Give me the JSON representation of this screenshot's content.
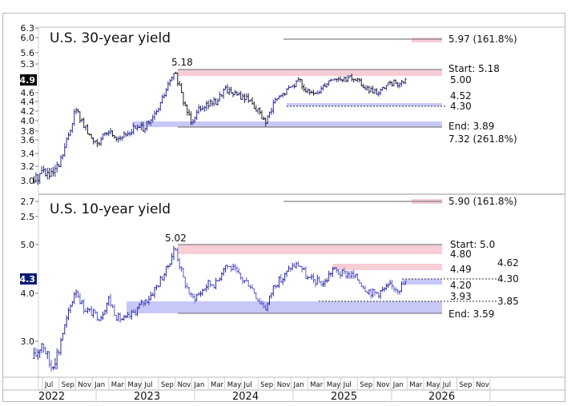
{
  "chart_data": [
    {
      "type": "bar",
      "subtype": "ohlc-price-bars",
      "title": "U.S. 30-year yield",
      "xlabel": "",
      "ylabel": "",
      "y_ticks": [
        "3.0",
        "3.2",
        "3.4",
        "3.6",
        "3.8",
        "4.0",
        "4.2",
        "4.4",
        "4.6",
        "5.3",
        "5.6",
        "6.0",
        "6.3"
      ],
      "y_tick_values": [
        3.0,
        3.2,
        3.4,
        3.6,
        3.8,
        4.0,
        4.2,
        4.4,
        4.6,
        5.3,
        5.6,
        6.0,
        6.3
      ],
      "current_value_label": "4.9",
      "ylim": [
        2.85,
        6.35
      ],
      "peak_label": "5.18",
      "annotations": [
        {
          "text": "5.97 (161.8%)",
          "value": 5.97
        },
        {
          "text": "Start: 5.18",
          "value": 5.18
        },
        {
          "text": "5.00",
          "value": 5.0
        },
        {
          "text": "4.52",
          "value": 4.52
        },
        {
          "text": "4.30",
          "value": 4.3
        },
        {
          "text": "End: 3.89",
          "value": 3.89
        },
        {
          "text": "7.32 (261.8%)",
          "value": 7.32
        }
      ],
      "zones": [
        {
          "color": "pink",
          "from": 5.0,
          "to": 5.18
        },
        {
          "color": "pink",
          "from": 5.94,
          "to": 6.0
        },
        {
          "color": "blue",
          "from": 4.28,
          "to": 4.33
        },
        {
          "color": "blue",
          "from": 3.89,
          "to": 4.0
        }
      ],
      "x": [
        "2022-05",
        "2022-06",
        "2022-07",
        "2022-08",
        "2022-09",
        "2022-10",
        "2022-11",
        "2022-12",
        "2023-01",
        "2023-02",
        "2023-03",
        "2023-04",
        "2023-05",
        "2023-06",
        "2023-07",
        "2023-08",
        "2023-09",
        "2023-10",
        "2023-11",
        "2023-12",
        "2024-01",
        "2024-02",
        "2024-03",
        "2024-04",
        "2024-05",
        "2024-06",
        "2024-07",
        "2024-08",
        "2024-09",
        "2024-10",
        "2024-11",
        "2024-12",
        "2025-01",
        "2025-02",
        "2025-03",
        "2025-04",
        "2025-05",
        "2025-06",
        "2025-07",
        "2025-08",
        "2025-09",
        "2025-10",
        "2025-11",
        "2025-12",
        "2026-01",
        "2026-02"
      ],
      "values": [
        3.0,
        3.15,
        3.05,
        3.2,
        3.6,
        4.25,
        3.9,
        3.6,
        3.6,
        3.8,
        3.65,
        3.7,
        3.85,
        3.85,
        3.95,
        4.25,
        4.7,
        5.1,
        4.4,
        4.0,
        4.3,
        4.35,
        4.4,
        4.7,
        4.6,
        4.5,
        4.45,
        4.2,
        3.95,
        4.4,
        4.55,
        4.75,
        4.9,
        4.6,
        4.55,
        4.8,
        4.95,
        4.9,
        4.95,
        4.9,
        4.7,
        4.6,
        4.65,
        4.85,
        4.8,
        4.9
      ]
    },
    {
      "type": "bar",
      "subtype": "ohlc-price-bars",
      "title": "U.S. 10-year yield",
      "xlabel": "",
      "ylabel": "",
      "y_ticks": [
        "2.5",
        "2.7",
        "3.0",
        "4.0",
        "5.0"
      ],
      "y_tick_values": [
        2.5,
        2.7,
        3.0,
        4.0,
        5.0
      ],
      "current_value_label": "4.3",
      "ylim": [
        2.45,
        5.3
      ],
      "peak_label": "5.02",
      "annotations": [
        {
          "text": "5.90 (161.8%)",
          "value": 5.9
        },
        {
          "text": "Start: 5.0",
          "value": 5.0
        },
        {
          "text": "4.80",
          "value": 4.8
        },
        {
          "text": "4.62",
          "value": 4.62
        },
        {
          "text": "4.49",
          "value": 4.49
        },
        {
          "text": "4.30",
          "value": 4.3
        },
        {
          "text": "4.20",
          "value": 4.2
        },
        {
          "text": "3.93",
          "value": 3.93
        },
        {
          "text": "3.85",
          "value": 3.85
        },
        {
          "text": "End: 3.59",
          "value": 3.59
        }
      ],
      "zones": [
        {
          "color": "pink",
          "from": 4.8,
          "to": 5.0
        },
        {
          "color": "pink",
          "from": 4.49,
          "to": 4.62
        },
        {
          "color": "blue",
          "from": 4.2,
          "to": 4.3
        },
        {
          "color": "blue",
          "from": 3.59,
          "to": 3.85
        }
      ],
      "x": [
        "2022-05",
        "2022-06",
        "2022-07",
        "2022-08",
        "2022-09",
        "2022-10",
        "2022-11",
        "2022-12",
        "2023-01",
        "2023-02",
        "2023-03",
        "2023-04",
        "2023-05",
        "2023-06",
        "2023-07",
        "2023-08",
        "2023-09",
        "2023-10",
        "2023-11",
        "2023-12",
        "2024-01",
        "2024-02",
        "2024-03",
        "2024-04",
        "2024-05",
        "2024-06",
        "2024-07",
        "2024-08",
        "2024-09",
        "2024-10",
        "2024-11",
        "2024-12",
        "2025-01",
        "2025-02",
        "2025-03",
        "2025-04",
        "2025-05",
        "2025-06",
        "2025-07",
        "2025-08",
        "2025-09",
        "2025-10",
        "2025-11",
        "2025-12",
        "2026-01",
        "2026-02"
      ],
      "values": [
        2.8,
        3.0,
        2.7,
        2.9,
        3.5,
        4.1,
        3.7,
        3.6,
        3.5,
        3.9,
        3.5,
        3.45,
        3.6,
        3.8,
        3.95,
        4.2,
        4.5,
        4.95,
        4.3,
        3.9,
        4.0,
        4.2,
        4.2,
        4.6,
        4.5,
        4.3,
        4.2,
        3.9,
        3.7,
        4.2,
        4.3,
        4.55,
        4.6,
        4.3,
        4.25,
        4.2,
        4.5,
        4.4,
        4.4,
        4.3,
        4.1,
        4.0,
        4.05,
        4.15,
        4.1,
        4.25
      ]
    }
  ],
  "x_axis": {
    "months": [
      "Jul",
      "Sep",
      "Nov",
      "Jan",
      "Mar",
      "May",
      "Jul",
      "Sep",
      "Nov",
      "Jan",
      "Mar",
      "May",
      "Jul",
      "Sep",
      "Nov",
      "Jan",
      "Mar",
      "May",
      "Jul",
      "Sep",
      "Nov",
      "Jan",
      "Mar",
      "May",
      "Jul",
      "Sep",
      "Nov"
    ],
    "years": [
      "2022",
      "2023",
      "2024",
      "2025",
      "2026"
    ]
  },
  "colors": {
    "up_bar": "#2a2aa0",
    "down_bar": "#222222",
    "pink_zone": "#f7cdd6",
    "blue_zone": "#c8c8f8",
    "frame": "#b8b8b8",
    "label_bg_30y": "#000000",
    "label_bg_10y": "#0a1a7a"
  }
}
